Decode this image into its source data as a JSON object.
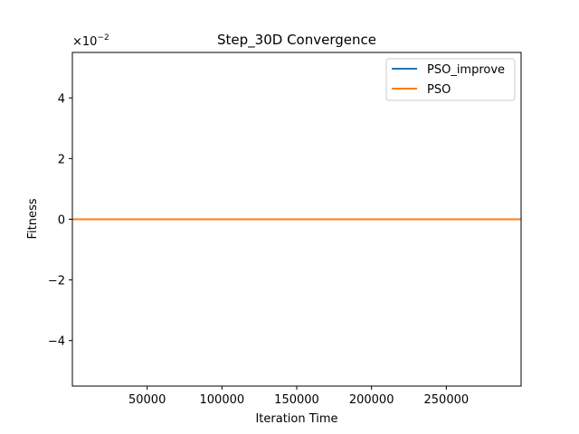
{
  "chart_data": {
    "type": "line",
    "title": "Step_30D Convergence",
    "xlabel": "Iteration Time",
    "ylabel": "Fitness",
    "y_scale_label": "×10",
    "y_scale_exp": "−2",
    "xlim": [
      1,
      300000
    ],
    "ylim": [
      -0.055,
      0.055
    ],
    "x_ticks": [
      50000,
      100000,
      150000,
      200000,
      250000
    ],
    "x_tick_labels": [
      "50000",
      "100000",
      "150000",
      "200000",
      "250000"
    ],
    "y_ticks": [
      -0.04,
      -0.02,
      0,
      0.02,
      0.04
    ],
    "y_tick_labels": [
      "−4",
      "−2",
      "0",
      "2",
      "4"
    ],
    "grid": false,
    "legend_position": "top-right",
    "series": [
      {
        "name": "PSO_improve",
        "color": "#1f77b4",
        "x": [
          1,
          300000
        ],
        "y": [
          0,
          0
        ]
      },
      {
        "name": "PSO",
        "color": "#ff7f0e",
        "x": [
          1,
          300000
        ],
        "y": [
          0,
          0
        ]
      }
    ]
  }
}
